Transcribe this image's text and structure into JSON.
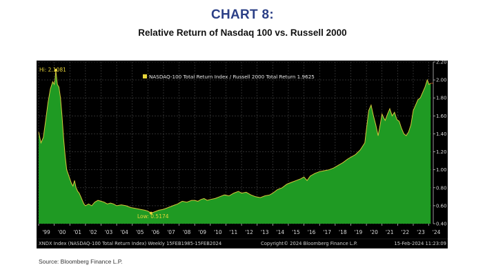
{
  "header": {
    "title": "CHART 8:",
    "subtitle": "Relative Return of Nasdaq 100 vs. Russell 2000"
  },
  "footer": {
    "source": "Source: Bloomberg Finance L.P.",
    "bar_left": "XNDX Index (NASDAQ-100 Total Return Index)  Weekly 15FEB1985-15FEB2024",
    "bar_mid": "Copyright© 2024 Bloomberg Finance L.P.",
    "bar_right": "15-Feb-2024 11:23:09"
  },
  "colors": {
    "area": "#1f9a23",
    "line": "#d6c73a",
    "background": "#000000",
    "grid": "#4a4a4a",
    "axis_text": "#d8d8d8",
    "marker": "#e6d53a"
  },
  "chart_data": {
    "type": "area",
    "title": "",
    "xlabel": "",
    "ylabel": "",
    "legend": "NASDAQ-100 Total Return Index / Russell 2000 Total Return 1.9625",
    "legend_position": "top-left",
    "grid": true,
    "xlim": [
      1999.0,
      2024.15
    ],
    "ylim": [
      0.4,
      2.2
    ],
    "x_ticks": [
      "'99",
      "'00",
      "'01",
      "'02",
      "'03",
      "'04",
      "'05",
      "'06",
      "'07",
      "'08",
      "'09",
      "'10",
      "'11",
      "'12",
      "'13",
      "'14",
      "'15",
      "'16",
      "'17",
      "'18",
      "'19",
      "'20",
      "'21",
      "'22",
      "'23",
      "'24"
    ],
    "y_ticks": [
      "2.20",
      "2.00",
      "1.80",
      "1.60",
      "1.40",
      "1.20",
      "1.00",
      "0.80",
      "0.60",
      "0.40"
    ],
    "y_tick_values": [
      2.2,
      2.0,
      1.8,
      1.6,
      1.4,
      1.2,
      1.0,
      0.8,
      0.6,
      0.4
    ],
    "annotations": [
      {
        "text": "Hi: 2.1081",
        "x": 2000.1,
        "y": 2.1081
      },
      {
        "text": "Low: 0.5174",
        "x": 2006.2,
        "y": 0.5174
      }
    ],
    "last_value": 1.9625,
    "series": [
      {
        "x": [
          1999.0,
          1999.15,
          1999.3,
          1999.45,
          1999.6,
          1999.75,
          1999.9,
          2000.0,
          2000.05,
          2000.1,
          2000.2,
          2000.3,
          2000.4,
          2000.5,
          2000.6,
          2000.7,
          2000.8,
          2000.9,
          2001.0,
          2001.1,
          2001.2,
          2001.3,
          2001.4,
          2001.5,
          2001.6,
          2001.7,
          2001.8,
          2001.9,
          2002.0,
          2002.2,
          2002.4,
          2002.6,
          2002.8,
          2003.0,
          2003.2,
          2003.4,
          2003.6,
          2003.8,
          2004.0,
          2004.3,
          2004.6,
          2004.9,
          2005.2,
          2005.5,
          2005.8,
          2006.0,
          2006.2,
          2006.4,
          2006.7,
          2007.0,
          2007.3,
          2007.6,
          2007.9,
          2008.2,
          2008.5,
          2008.8,
          2009.0,
          2009.2,
          2009.4,
          2009.6,
          2009.8,
          2010.0,
          2010.3,
          2010.6,
          2010.9,
          2011.2,
          2011.5,
          2011.8,
          2012.0,
          2012.3,
          2012.6,
          2012.9,
          2013.2,
          2013.5,
          2013.8,
          2014.0,
          2014.3,
          2014.6,
          2014.9,
          2015.2,
          2015.5,
          2015.8,
          2016.0,
          2016.2,
          2016.4,
          2016.7,
          2017.0,
          2017.3,
          2017.6,
          2017.9,
          2018.2,
          2018.5,
          2018.8,
          2019.0,
          2019.3,
          2019.6,
          2019.9,
          2020.0,
          2020.15,
          2020.3,
          2020.45,
          2020.6,
          2020.75,
          2020.9,
          2021.0,
          2021.1,
          2021.2,
          2021.35,
          2021.5,
          2021.65,
          2021.8,
          2021.95,
          2022.1,
          2022.25,
          2022.4,
          2022.55,
          2022.7,
          2022.85,
          2023.0,
          2023.15,
          2023.3,
          2023.45,
          2023.6,
          2023.75,
          2023.9,
          2024.0,
          2024.12
        ],
        "y": [
          1.42,
          1.3,
          1.36,
          1.55,
          1.75,
          1.9,
          1.98,
          1.95,
          2.0,
          2.1081,
          1.95,
          1.92,
          1.8,
          1.6,
          1.35,
          1.15,
          1.0,
          0.95,
          0.9,
          0.85,
          0.82,
          0.88,
          0.8,
          0.76,
          0.74,
          0.7,
          0.66,
          0.62,
          0.6,
          0.62,
          0.6,
          0.64,
          0.66,
          0.65,
          0.64,
          0.62,
          0.63,
          0.62,
          0.6,
          0.61,
          0.6,
          0.58,
          0.57,
          0.56,
          0.55,
          0.54,
          0.5174,
          0.53,
          0.55,
          0.56,
          0.58,
          0.6,
          0.62,
          0.65,
          0.64,
          0.66,
          0.66,
          0.65,
          0.67,
          0.68,
          0.66,
          0.67,
          0.68,
          0.7,
          0.72,
          0.71,
          0.74,
          0.76,
          0.74,
          0.75,
          0.72,
          0.7,
          0.69,
          0.71,
          0.72,
          0.74,
          0.78,
          0.8,
          0.84,
          0.86,
          0.88,
          0.9,
          0.92,
          0.88,
          0.93,
          0.96,
          0.98,
          0.99,
          1.0,
          1.02,
          1.05,
          1.08,
          1.12,
          1.14,
          1.17,
          1.22,
          1.3,
          1.45,
          1.66,
          1.72,
          1.6,
          1.5,
          1.38,
          1.52,
          1.62,
          1.58,
          1.55,
          1.62,
          1.68,
          1.6,
          1.64,
          1.56,
          1.54,
          1.46,
          1.4,
          1.38,
          1.42,
          1.5,
          1.66,
          1.72,
          1.78,
          1.8,
          1.86,
          1.92,
          2.0,
          1.95,
          1.9625
        ]
      }
    ]
  }
}
